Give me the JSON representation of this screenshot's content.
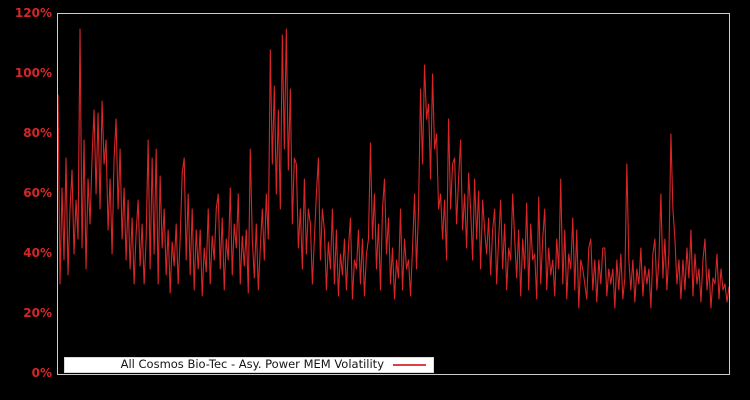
{
  "chart": {
    "background_color": "#000000",
    "plot_border_color": "#cdcdcd",
    "series_color": "#d62728",
    "tick_label_color": "#d62728",
    "legend_background": "#ffffff"
  },
  "axes": {
    "y_max": 120,
    "y_min": 0,
    "y_ticks": [
      {
        "value": 0,
        "label": "0%"
      },
      {
        "value": 20,
        "label": "20%"
      },
      {
        "value": 40,
        "label": "40%"
      },
      {
        "value": 60,
        "label": "60%"
      },
      {
        "value": 80,
        "label": "80%"
      },
      {
        "value": 100,
        "label": "100%"
      },
      {
        "value": 120,
        "label": "120%"
      }
    ],
    "x_labels_visible": false
  },
  "legend": {
    "label": "All Cosmos Bio-Tec - Asy. Power MEM Volatility",
    "position": "bottom",
    "marker": "red-line"
  },
  "chart_data": {
    "type": "line",
    "title": "",
    "xlabel": "",
    "ylabel": "",
    "ylim": [
      0,
      120
    ],
    "y_unit": "percent",
    "grid": false,
    "legend_position": "bottom",
    "x": "implicit time index 0-335 (no x tick labels shown)",
    "series": [
      {
        "name": "All Cosmos Bio-Tec - Asy. Power MEM Volatility",
        "color": "#d62728",
        "values": [
          93,
          30,
          62,
          38,
          72,
          33,
          55,
          68,
          40,
          58,
          45,
          115,
          42,
          78,
          35,
          65,
          50,
          72,
          88,
          60,
          87,
          55,
          91,
          70,
          78,
          48,
          65,
          40,
          72,
          85,
          55,
          75,
          45,
          62,
          38,
          58,
          35,
          52,
          30,
          47,
          58,
          36,
          50,
          30,
          45,
          78,
          35,
          72,
          40,
          75,
          30,
          66,
          42,
          55,
          33,
          48,
          27,
          44,
          36,
          50,
          30,
          45,
          67,
          72,
          38,
          60,
          33,
          55,
          28,
          48,
          35,
          48,
          26,
          42,
          34,
          55,
          30,
          46,
          38,
          55,
          60,
          35,
          52,
          28,
          45,
          38,
          62,
          33,
          50,
          42,
          60,
          30,
          46,
          36,
          48,
          27,
          75,
          45,
          32,
          50,
          28,
          42,
          55,
          38,
          60,
          45,
          108,
          70,
          96,
          60,
          88,
          55,
          113,
          75,
          115,
          68,
          95,
          50,
          72,
          70,
          42,
          55,
          35,
          65,
          40,
          55,
          50,
          30,
          45,
          60,
          72,
          38,
          55,
          48,
          28,
          44,
          35,
          55,
          30,
          48,
          26,
          40,
          33,
          45,
          28,
          42,
          52,
          25,
          38,
          35,
          48,
          30,
          45,
          26,
          40,
          45,
          77,
          45,
          60,
          35,
          50,
          28,
          55,
          65,
          40,
          52,
          30,
          42,
          25,
          38,
          32,
          55,
          28,
          45,
          35,
          38,
          26,
          42,
          60,
          35,
          55,
          95,
          70,
          103,
          85,
          90,
          65,
          100,
          75,
          80,
          55,
          60,
          45,
          58,
          38,
          85,
          55,
          70,
          72,
          50,
          65,
          78,
          48,
          60,
          42,
          67,
          55,
          38,
          65,
          45,
          61,
          35,
          58,
          48,
          40,
          52,
          33,
          48,
          55,
          30,
          45,
          58,
          35,
          50,
          28,
          42,
          38,
          60,
          45,
          32,
          48,
          26,
          45,
          35,
          57,
          28,
          50,
          38,
          40,
          25,
          59,
          30,
          45,
          55,
          28,
          42,
          33,
          38,
          26,
          45,
          35,
          65,
          30,
          48,
          25,
          40,
          35,
          52,
          28,
          48,
          22,
          38,
          35,
          30,
          25,
          42,
          45,
          28,
          38,
          24,
          38,
          30,
          42,
          42,
          26,
          35,
          30,
          35,
          22,
          38,
          28,
          40,
          25,
          32,
          70,
          38,
          28,
          38,
          24,
          35,
          30,
          42,
          26,
          36,
          30,
          35,
          22,
          40,
          45,
          28,
          38,
          60,
          32,
          45,
          28,
          40,
          80,
          55,
          45,
          30,
          38,
          25,
          38,
          28,
          42,
          32,
          48,
          26,
          40,
          30,
          35,
          24,
          38,
          45,
          28,
          35,
          22,
          32,
          30,
          40,
          25,
          35,
          28,
          30,
          24,
          29
        ]
      }
    ]
  }
}
